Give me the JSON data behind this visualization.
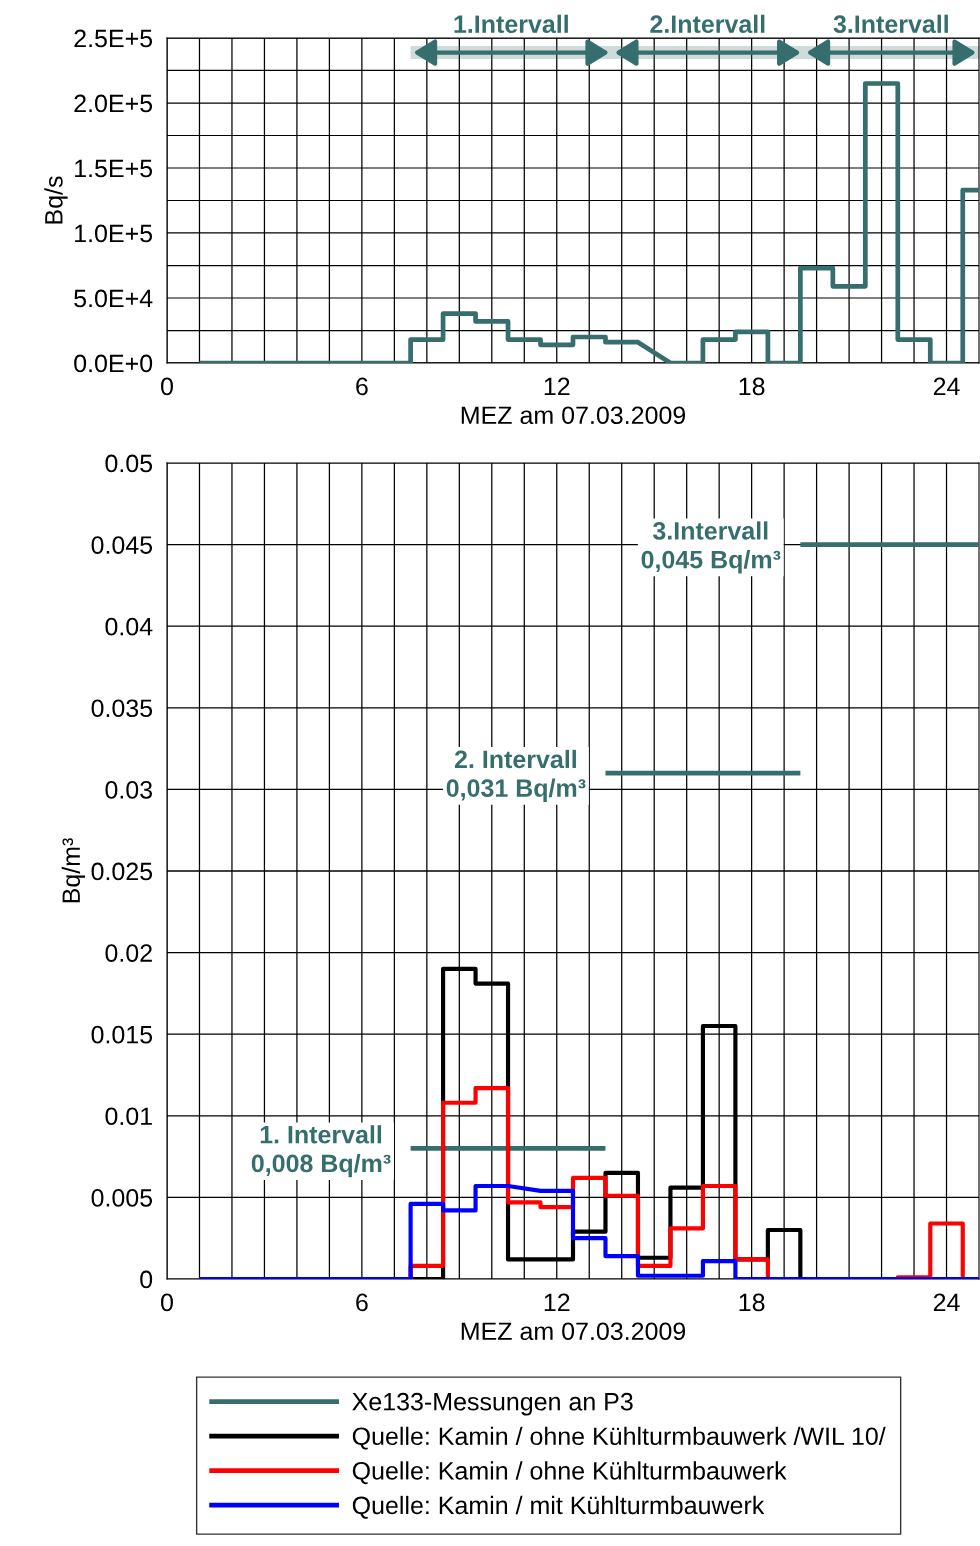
{
  "chart_data": [
    {
      "type": "line",
      "ylabel": "Bq/s",
      "xlabel": "MEZ am 07.03.2009",
      "xlim": [
        0,
        25
      ],
      "xticks": [
        0,
        {
          "value": 1,
          "label": null
        },
        {
          "value": 2,
          "label": null
        },
        {
          "value": 3,
          "label": null
        },
        {
          "value": 4,
          "label": null
        },
        {
          "value": 5,
          "label": null
        },
        6,
        {
          "value": 7,
          "label": null
        },
        {
          "value": 8,
          "label": null
        },
        {
          "value": 9,
          "label": null
        },
        {
          "value": 10,
          "label": null
        },
        {
          "value": 11,
          "label": null
        },
        12,
        {
          "value": 13,
          "label": null
        },
        {
          "value": 14,
          "label": null
        },
        {
          "value": 15,
          "label": null
        },
        {
          "value": 16,
          "label": null
        },
        {
          "value": 17,
          "label": null
        },
        18,
        {
          "value": 19,
          "label": null
        },
        {
          "value": 20,
          "label": null
        },
        {
          "value": 21,
          "label": null
        },
        {
          "value": 22,
          "label": null
        },
        {
          "value": 23,
          "label": null
        },
        24
      ],
      "ylim": [
        0,
        250000
      ],
      "yticks": [
        {
          "value": 0,
          "label": "0.0E+0"
        },
        {
          "value": 25000,
          "label": null
        },
        {
          "value": 50000,
          "label": "5.0E+4"
        },
        {
          "value": 75000,
          "label": null
        },
        {
          "value": 100000,
          "label": "1.0E+5"
        },
        {
          "value": 125000,
          "label": null
        },
        {
          "value": 150000,
          "label": "1.5E+5"
        },
        {
          "value": 175000,
          "label": null
        },
        {
          "value": 200000,
          "label": "2.0E+5"
        },
        {
          "value": 225000,
          "label": null
        },
        {
          "value": 250000,
          "label": "2.5E+5"
        }
      ],
      "grid": true,
      "bands": [
        {
          "axis": "x",
          "from": 7.5,
          "to": 13.7,
          "label": "1.Intervall",
          "color": "#366e6e"
        },
        {
          "axis": "x",
          "from": 13.7,
          "to": 19.6,
          "label": "2.Intervall",
          "color": "#366e6e"
        },
        {
          "axis": "x",
          "from": 19.6,
          "to": 25,
          "label": "3.Intervall",
          "color": "#366e6e"
        }
      ],
      "series": [
        {
          "color": "#366e6e",
          "x": [
            1,
            7.5,
            7.5,
            8.5,
            8.5,
            9.5,
            9.5,
            10.5,
            10.5,
            11.5,
            11.5,
            12.5,
            12.5,
            13.5,
            13.5,
            14.5,
            15.5,
            16.5,
            16.5,
            17.5,
            17.5,
            18.5,
            18.5,
            19.5,
            19.5,
            20.5,
            20.5,
            21.5,
            21.5,
            22.5,
            22.5,
            23.5,
            23.5,
            24.5,
            24.5,
            25
          ],
          "values": [
            0,
            0,
            18000,
            18000,
            38000,
            38000,
            32000,
            32000,
            18000,
            18000,
            14000,
            14000,
            20000,
            20000,
            16000,
            16000,
            0,
            0,
            18000,
            18000,
            24000,
            24000,
            0,
            0,
            73000,
            73000,
            59000,
            59000,
            215000,
            215000,
            18000,
            18000,
            0,
            0,
            133000,
            133000
          ]
        }
      ]
    },
    {
      "type": "line",
      "ylabel": "Bq/m³",
      "xlabel": "MEZ am 07.03.2009",
      "xlim": [
        0,
        25
      ],
      "xticks": [
        0,
        {
          "value": 1,
          "label": null
        },
        {
          "value": 2,
          "label": null
        },
        {
          "value": 3,
          "label": null
        },
        {
          "value": 4,
          "label": null
        },
        {
          "value": 5,
          "label": null
        },
        6,
        {
          "value": 7,
          "label": null
        },
        {
          "value": 8,
          "label": null
        },
        {
          "value": 9,
          "label": null
        },
        {
          "value": 10,
          "label": null
        },
        {
          "value": 11,
          "label": null
        },
        12,
        {
          "value": 13,
          "label": null
        },
        {
          "value": 14,
          "label": null
        },
        {
          "value": 15,
          "label": null
        },
        {
          "value": 16,
          "label": null
        },
        {
          "value": 17,
          "label": null
        },
        18,
        {
          "value": 19,
          "label": null
        },
        {
          "value": 20,
          "label": null
        },
        {
          "value": 21,
          "label": null
        },
        {
          "value": 22,
          "label": null
        },
        {
          "value": 23,
          "label": null
        },
        24
      ],
      "ylim": [
        0,
        0.05
      ],
      "yticks": [
        0,
        0.005,
        0.01,
        0.015,
        0.02,
        0.025,
        0.03,
        0.035,
        0.04,
        0.045,
        0.05
      ],
      "grid": true,
      "legend": "bottom",
      "annotations": [
        {
          "text": "1. Intervall\n0,008 Bq/m³",
          "x": 7.5,
          "y": 0.008
        },
        {
          "text": "2. Intervall\n0,031 Bq/m³",
          "x": 13.5,
          "y": 0.031
        },
        {
          "text": "3.Intervall\n0,045 Bq/m³",
          "x": 19.5,
          "y": 0.045
        }
      ],
      "series": [
        {
          "name": "Xe133-Messungen an P3",
          "color": "#366e6e",
          "x": [
            7.5,
            13.5
          ],
          "values": [
            0.008,
            0.008
          ]
        },
        {
          "color": "#366e6e",
          "x": [
            13.5,
            19.5
          ],
          "values": [
            0.031,
            0.031
          ]
        },
        {
          "color": "#366e6e",
          "x": [
            19.5,
            25
          ],
          "values": [
            0.045,
            0.045
          ]
        },
        {
          "name": "Quelle: Kamin / ohne Kühlturmbauwerk /WIL 10/",
          "color": "#000000",
          "x": [
            1,
            8.5,
            8.5,
            9.5,
            9.5,
            10.5,
            10.5,
            12.5,
            12.5,
            13.5,
            13.5,
            14.5,
            14.5,
            15.5,
            15.5,
            16.5,
            16.5,
            17.5,
            17.5,
            18.5,
            18.5,
            19.5,
            19.5,
            25
          ],
          "values": [
            0,
            0,
            0.019,
            0.019,
            0.0181,
            0.0181,
            0.0012,
            0.0012,
            0.0029,
            0.0029,
            0.0065,
            0.0065,
            0.0013,
            0.0013,
            0.0056,
            0.0056,
            0.0155,
            0.0155,
            0.0012,
            0.0012,
            0.003,
            0.003,
            0,
            0
          ]
        },
        {
          "name": "Quelle: Kamin / ohne Kühlturmbauwerk",
          "color": "#ff0000",
          "x": [
            1,
            7.5,
            7.5,
            8.5,
            8.5,
            9.5,
            9.5,
            10.5,
            10.5,
            11.5,
            11.5,
            12.5,
            12.5,
            13.5,
            13.5,
            14.5,
            14.5,
            15.5,
            15.5,
            16.5,
            16.5,
            17.5,
            17.5,
            18.5,
            18.5,
            22.5,
            22.5,
            23.5,
            23.5,
            24.5,
            24.5,
            25
          ],
          "values": [
            0,
            0,
            0.0008,
            0.0008,
            0.0108,
            0.0108,
            0.0117,
            0.0117,
            0.0047,
            0.0047,
            0.0044,
            0.0044,
            0.0062,
            0.0062,
            0.0051,
            0.0051,
            0.0008,
            0.0008,
            0.0031,
            0.0031,
            0.0057,
            0.0057,
            0.0012,
            0.0012,
            0,
            0,
            0.0001,
            0.0001,
            0.0034,
            0.0034,
            0,
            0
          ]
        },
        {
          "name": "Quelle: Kamin / mit Kühlturmbauwerk",
          "color": "#0000ff",
          "x": [
            1,
            7.5,
            7.5,
            8.5,
            8.5,
            9.5,
            9.5,
            10.5,
            11.5,
            12.5,
            12.5,
            13.5,
            13.5,
            14.5,
            14.5,
            16.5,
            16.5,
            17.5,
            17.5,
            25
          ],
          "values": [
            0,
            0,
            0.0046,
            0.0046,
            0.0042,
            0.0042,
            0.0057,
            0.0057,
            0.0054,
            0.0054,
            0.0025,
            0.0025,
            0.0014,
            0.0014,
            0.0002,
            0.0002,
            0.0011,
            0.0011,
            0,
            0
          ]
        }
      ]
    }
  ]
}
